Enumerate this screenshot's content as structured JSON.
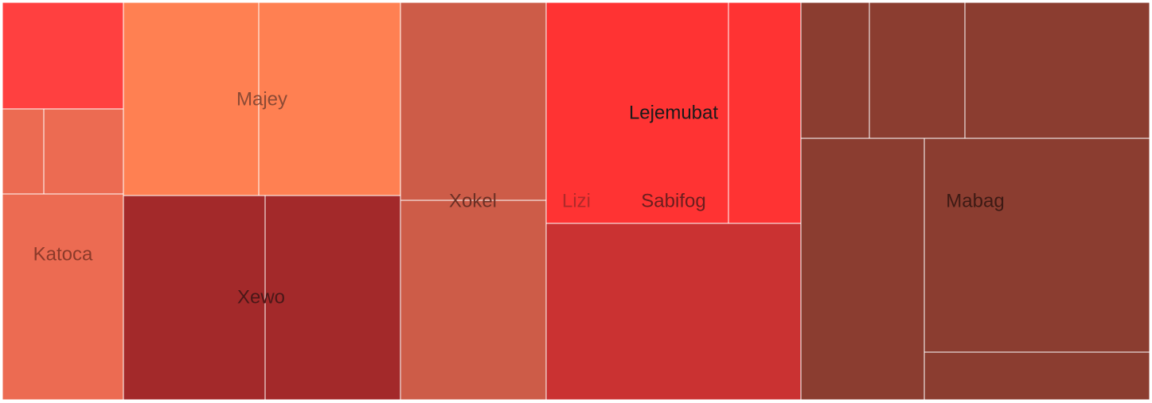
{
  "chart_data": {
    "type": "treemap",
    "title": "",
    "groups": [
      {
        "label": "Katoca",
        "color": "#EC6B52",
        "label_color": "#8B3A2A",
        "children": [
          {
            "name": "",
            "value": 20.2,
            "color": "#FF4040"
          },
          {
            "name": "",
            "value": 7.0,
            "color": "#EC6B52"
          },
          {
            "name": "",
            "value": 13.3,
            "color": "#EC6B52"
          },
          {
            "name": "",
            "value": 39.1,
            "color": "#EC6B52"
          }
        ]
      },
      {
        "label": "Majey",
        "color": "#FF8052",
        "label_color": "#8B4A35",
        "children": [
          {
            "name": "",
            "value": 41.6,
            "color": "#FF8052"
          },
          {
            "name": "",
            "value": 43.8,
            "color": "#FF8052"
          }
        ]
      },
      {
        "label": "Xewo",
        "color": "#A3292A",
        "label_color": "#4A1818",
        "children": [
          {
            "name": "",
            "value": 45.0,
            "color": "#A3292A"
          },
          {
            "name": "",
            "value": 43.5,
            "color": "#A3292A"
          }
        ]
      },
      {
        "label": "Xokel",
        "color": "#CD5C48",
        "label_color": "#6B3025",
        "children": [
          {
            "name": "",
            "value": 45.4,
            "color": "#CD5C48"
          },
          {
            "name": "",
            "value": 45.9,
            "color": "#CD5C48"
          }
        ]
      },
      {
        "label": "Lizi",
        "color": "#CA3232",
        "label_color": "#B02A2A",
        "children": [
          {
            "name": "",
            "value": 63.9,
            "color": "#CA3232"
          }
        ]
      },
      {
        "label": "Sabifog",
        "color": "#FF3333",
        "label_color": "#6B1E1E",
        "children": [
          {
            "name": "",
            "value": 62.5,
            "color": "#FF3333"
          },
          {
            "name": "",
            "value": 24.8,
            "color": "#FF3333"
          }
        ]
      },
      {
        "label": "Lejemubat",
        "color": "#FF3333",
        "label_color": "#1a1a1a",
        "children": []
      },
      {
        "label": "Mabag",
        "color": "#8B3D30",
        "label_color": "#3D1A14",
        "children": [
          {
            "name": "",
            "value": 14.6,
            "color": "#8B3D30"
          },
          {
            "name": "",
            "value": 20.2,
            "color": "#8B3D30"
          },
          {
            "name": "",
            "value": 38.6,
            "color": "#8B3D30"
          },
          {
            "name": "",
            "value": 50.8,
            "color": "#8B3D30"
          },
          {
            "name": "",
            "value": 72.9,
            "color": "#8B3D30"
          },
          {
            "name": "",
            "value": 16.2,
            "color": "#8B3D30"
          }
        ]
      }
    ]
  }
}
